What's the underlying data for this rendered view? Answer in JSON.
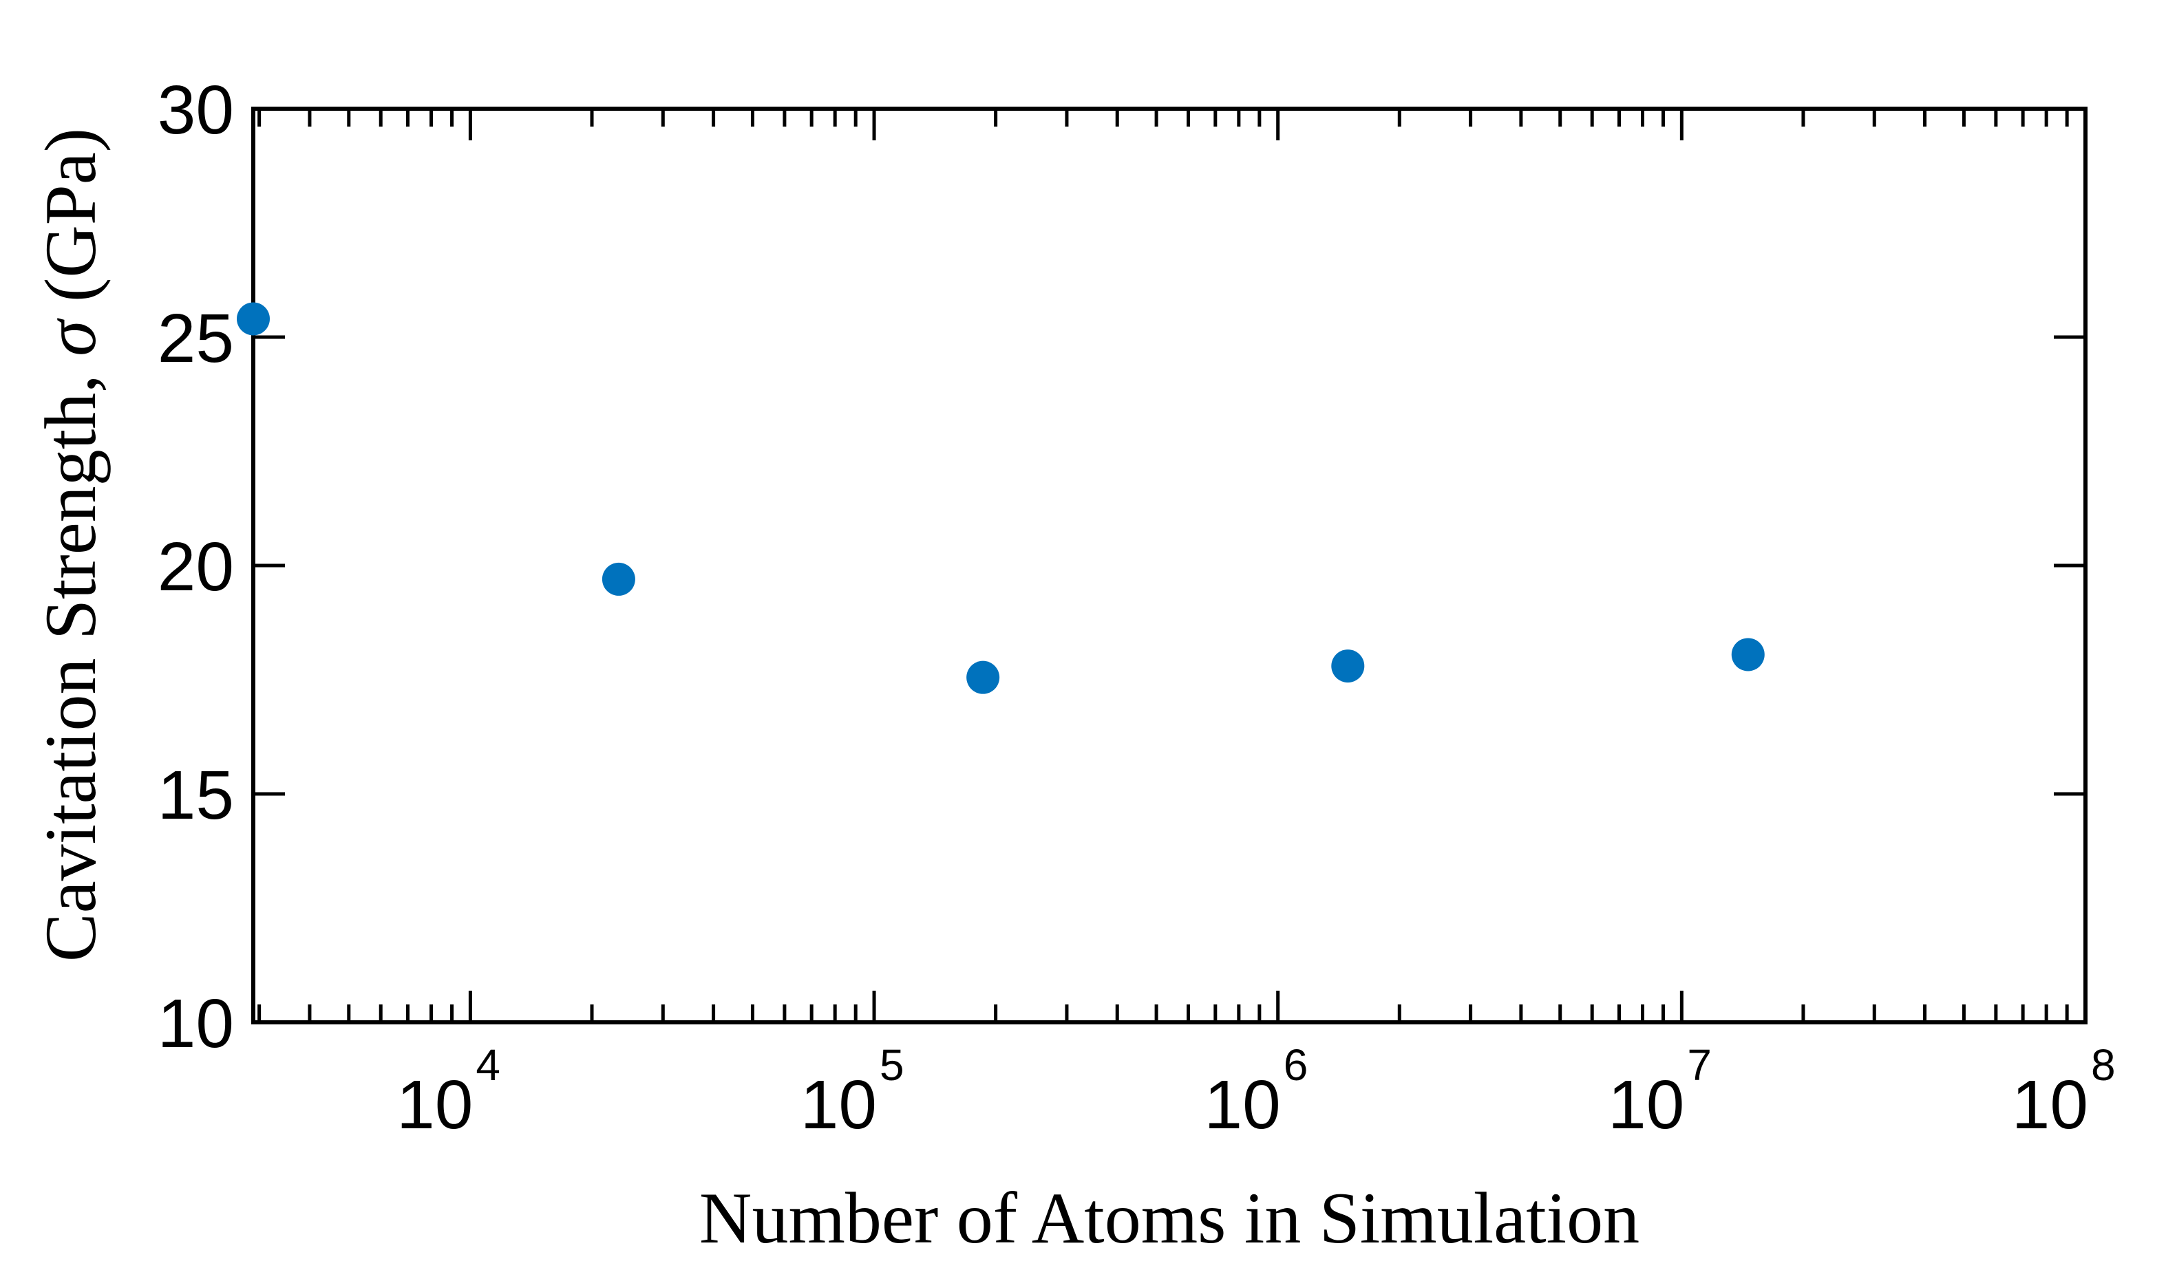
{
  "chart_data": {
    "type": "scatter",
    "title": "",
    "xlabel": "Number of Atoms in Simulation",
    "ylabel": "Cavitation Strength, σ (GPa)",
    "ylabel_parts": {
      "before": "Cavitation Strength, ",
      "symbol": "σ",
      "after": " (GPa)"
    },
    "x_scale": "log",
    "xlim": [
      2900,
      100000000
    ],
    "ylim": [
      10,
      30
    ],
    "x_ticks": [
      {
        "value": 10000,
        "base": "10",
        "exp": "4"
      },
      {
        "value": 100000,
        "base": "10",
        "exp": "5"
      },
      {
        "value": 1000000,
        "base": "10",
        "exp": "6"
      },
      {
        "value": 10000000,
        "base": "10",
        "exp": "7"
      },
      {
        "value": 100000000,
        "base": "10",
        "exp": "8"
      }
    ],
    "y_ticks": [
      {
        "value": 10,
        "label": "10"
      },
      {
        "value": 15,
        "label": "15"
      },
      {
        "value": 20,
        "label": "20"
      },
      {
        "value": 25,
        "label": "25"
      },
      {
        "value": 30,
        "label": "30"
      }
    ],
    "grid": false,
    "box": true,
    "marker_color": "#0072BD",
    "points": [
      {
        "x": 2900,
        "y": 25.4
      },
      {
        "x": 23300,
        "y": 19.7
      },
      {
        "x": 186000,
        "y": 17.55
      },
      {
        "x": 1490000,
        "y": 17.8
      },
      {
        "x": 14600000,
        "y": 18.05
      }
    ]
  }
}
